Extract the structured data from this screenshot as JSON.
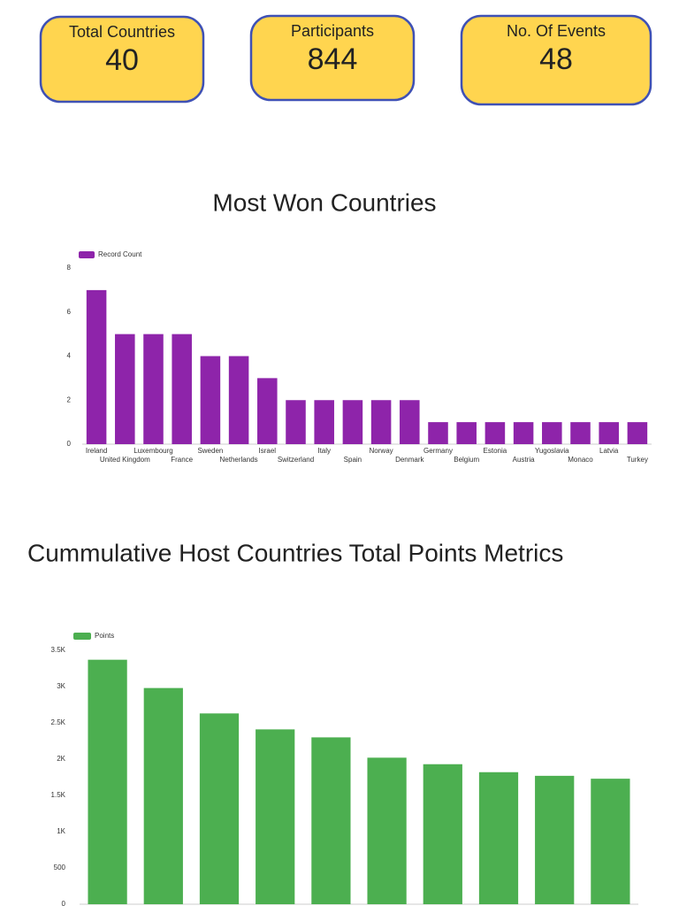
{
  "cards": [
    {
      "label": "Total Countries",
      "value": "40"
    },
    {
      "label": "Participants",
      "value": "844"
    },
    {
      "label": "No. Of Events",
      "value": "48"
    }
  ],
  "chart_data": [
    {
      "type": "bar",
      "title": "Most Won Countries",
      "categories": [
        "Ireland",
        "United Kingdom",
        "Luxembourg",
        "France",
        "Sweden",
        "Netherlands",
        "Israel",
        "Switzerland",
        "Italy",
        "Spain",
        "Norway",
        "Denmark",
        "Germany",
        "Belgium",
        "Estonia",
        "Austria",
        "Yugoslavia",
        "Monaco",
        "Latvia",
        "Turkey"
      ],
      "series": [
        {
          "name": "Record Count",
          "color": "#8e24aa",
          "values": [
            7,
            5,
            5,
            5,
            4,
            4,
            3,
            2,
            2,
            2,
            2,
            2,
            1,
            1,
            1,
            1,
            1,
            1,
            1,
            1
          ]
        }
      ],
      "ylim": [
        0,
        8
      ],
      "yticks": [
        0,
        2,
        4,
        6,
        8
      ],
      "grid": false
    },
    {
      "type": "bar",
      "title": "Cummulative Host Countries Total Points Metrics",
      "categories": [
        null,
        null,
        null,
        null,
        null,
        null,
        null,
        null,
        null,
        null
      ],
      "series": [
        {
          "name": "Points",
          "color": "#4caf50",
          "values": [
            3370,
            2980,
            2630,
            2410,
            2300,
            2020,
            1930,
            1820,
            1770,
            1730
          ]
        }
      ],
      "ylim": [
        0,
        3500
      ],
      "yticks": [
        0,
        500,
        {
          "value": 1000,
          "label": "1K"
        },
        {
          "value": 1500,
          "label": "1.5K"
        },
        {
          "value": 2000,
          "label": "2K"
        },
        {
          "value": 2500,
          "label": "2.5K"
        },
        {
          "value": 3000,
          "label": "3K"
        },
        {
          "value": 3500,
          "label": "3.5K"
        }
      ],
      "grid": false
    }
  ]
}
